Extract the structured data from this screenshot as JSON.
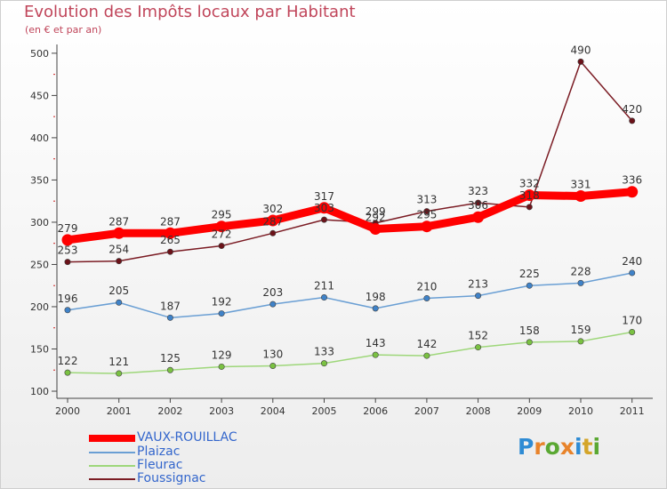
{
  "title": "Evolution des Impôts locaux par Habitant",
  "subtitle": "(en € et par an)",
  "logo": {
    "text": "Proxiti",
    "colors": [
      "#2e8bd4",
      "#e8832a",
      "#5aa832",
      "#e8832a",
      "#2e8bd4",
      "#d4a52a",
      "#5aa832"
    ]
  },
  "chart_data": {
    "type": "line",
    "x": [
      "2000",
      "2001",
      "2002",
      "2003",
      "2004",
      "2005",
      "2006",
      "2007",
      "2008",
      "2009",
      "2010",
      "2011"
    ],
    "ylim": [
      100,
      500
    ],
    "yticks": [
      100,
      150,
      200,
      250,
      300,
      350,
      400,
      450,
      500
    ],
    "grid": false,
    "legend_position": "bottom-left",
    "series": [
      {
        "name": "Foussignac",
        "color": "#7b1c24",
        "marker": "#6b1219",
        "values": [
          253,
          254,
          265,
          272,
          287,
          303,
          299,
          313,
          323,
          318,
          490,
          420
        ],
        "labels": [
          "253",
          "254",
          "265",
          "272",
          "287",
          "303",
          "299",
          "313",
          "323",
          "318",
          "490",
          "420"
        ]
      },
      {
        "name": "Fleurac",
        "color": "#9ed77a",
        "marker": "#7ac142",
        "values": [
          122,
          121,
          125,
          129,
          130,
          133,
          143,
          142,
          152,
          158,
          159,
          170
        ],
        "labels": [
          "122",
          "121",
          "125",
          "129",
          "130",
          "133",
          "143",
          "142",
          "152",
          "158",
          "159",
          "170"
        ]
      },
      {
        "name": "Plaizac",
        "color": "#6a9fd4",
        "marker": "#3f82c8",
        "values": [
          196,
          205,
          187,
          192,
          203,
          211,
          198,
          210,
          213,
          225,
          228,
          240
        ],
        "labels": [
          "196",
          "205",
          "187",
          "192",
          "203",
          "211",
          "198",
          "210",
          "213",
          "225",
          "228",
          "240"
        ]
      },
      {
        "name": "VAUX-ROUILLAC",
        "color": "#ff0000",
        "marker": "#ff0000",
        "values": [
          279,
          287,
          287,
          295,
          302,
          317,
          292,
          295,
          306,
          332,
          331,
          336
        ],
        "labels": [
          "279",
          "287",
          "287",
          "295",
          "302",
          "317",
          "292",
          "295",
          "306",
          "332",
          "331",
          "336"
        ]
      }
    ]
  },
  "legend": [
    {
      "name": "VAUX-ROUILLAC",
      "color": "#ff0000"
    },
    {
      "name": "Plaizac",
      "color": "#6a9fd4"
    },
    {
      "name": "Fleurac",
      "color": "#9ed77a"
    },
    {
      "name": "Foussignac",
      "color": "#7b1c24"
    }
  ]
}
